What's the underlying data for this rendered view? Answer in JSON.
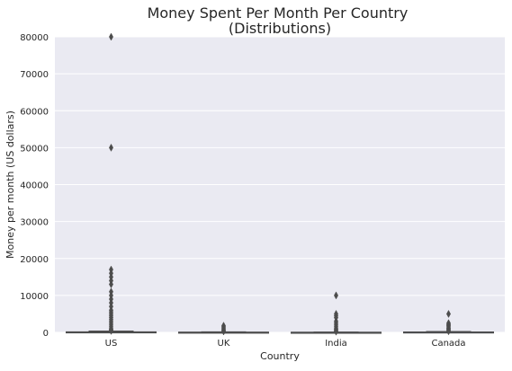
{
  "chart_data": {
    "type": "box",
    "title": "Money Spent Per Month Per Country\n(Distributions)",
    "title_lines": [
      "Money Spent Per Month Per Country",
      "(Distributions)"
    ],
    "xlabel": "Country",
    "ylabel": "Money per month (US dollars)",
    "categories": [
      "US",
      "UK",
      "India",
      "Canada"
    ],
    "ylim": [
      0,
      80000
    ],
    "yticks": [
      0,
      10000,
      20000,
      30000,
      40000,
      50000,
      60000,
      70000,
      80000
    ],
    "ytick_labels": [
      "0",
      "10000",
      "20000",
      "30000",
      "40000",
      "50000",
      "60000",
      "70000",
      "80000"
    ],
    "grid": true,
    "background_color": "#eaeaf2",
    "box_color": "#4c72b0",
    "line_color": "#4d4d4d",
    "boxes": [
      {
        "category": "US",
        "q1": 0,
        "median": 50,
        "q3": 150,
        "whisker_low": 0,
        "whisker_high": 350,
        "outliers": [
          80000,
          50000,
          17000,
          16000,
          15000,
          14000,
          13000,
          11000,
          10000,
          9000,
          8000,
          7000,
          6000,
          5500,
          5000,
          4500,
          4000,
          3500,
          3000,
          2500,
          2000,
          1500,
          1000,
          800,
          600,
          500,
          400
        ]
      },
      {
        "category": "UK",
        "q1": 0,
        "median": 20,
        "q3": 70,
        "whisker_low": 0,
        "whisker_high": 160,
        "outliers": [
          1800,
          1500,
          1200,
          900,
          600,
          400,
          250
        ]
      },
      {
        "category": "India",
        "q1": 0,
        "median": 10,
        "q3": 40,
        "whisker_low": 0,
        "whisker_high": 90,
        "outliers": [
          10000,
          5000,
          4500,
          4000,
          3000,
          2500,
          2000,
          1500,
          1000,
          800,
          500,
          300,
          200
        ]
      },
      {
        "category": "Canada",
        "q1": 0,
        "median": 40,
        "q3": 120,
        "whisker_low": 0,
        "whisker_high": 250,
        "outliers": [
          5000,
          2500,
          2200,
          2000,
          1800,
          1500,
          1200,
          1000,
          800,
          600,
          400,
          300
        ]
      }
    ]
  }
}
